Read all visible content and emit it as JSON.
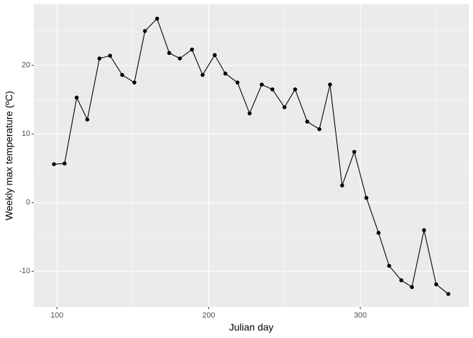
{
  "chart_data": {
    "type": "line",
    "x_label": "Julian day",
    "y_label": "Weekly max temperature (ºC)",
    "x": [
      98,
      105,
      113,
      120,
      128,
      135,
      143,
      151,
      158,
      166,
      174,
      181,
      189,
      196,
      204,
      211,
      219,
      227,
      235,
      242,
      250,
      257,
      265,
      273,
      280,
      288,
      296,
      304,
      312,
      319,
      327,
      334,
      342,
      350,
      358
    ],
    "series": [
      {
        "color": "#000000",
        "values": [
          5.6,
          5.7,
          15.3,
          12.1,
          21.0,
          21.4,
          18.6,
          17.5,
          25.0,
          26.8,
          21.8,
          21.0,
          22.3,
          18.6,
          21.5,
          18.8,
          17.5,
          13.0,
          17.2,
          16.5,
          13.9,
          16.5,
          11.8,
          10.7,
          17.2,
          2.5,
          7.4,
          0.7,
          -4.4,
          -9.2,
          -11.3,
          -12.3,
          -4.0,
          -11.9,
          -13.3
        ]
      }
    ],
    "xlim": [
      84.7,
      371.5
    ],
    "ylim": [
      -15.2,
      28.9
    ],
    "xticks": [
      100,
      200,
      300
    ],
    "yticks": [
      -10,
      0,
      10,
      20
    ],
    "xminor": [
      150,
      250,
      350
    ],
    "yminor": [
      -5,
      5,
      15,
      25
    ],
    "grid": true,
    "markers": true
  }
}
